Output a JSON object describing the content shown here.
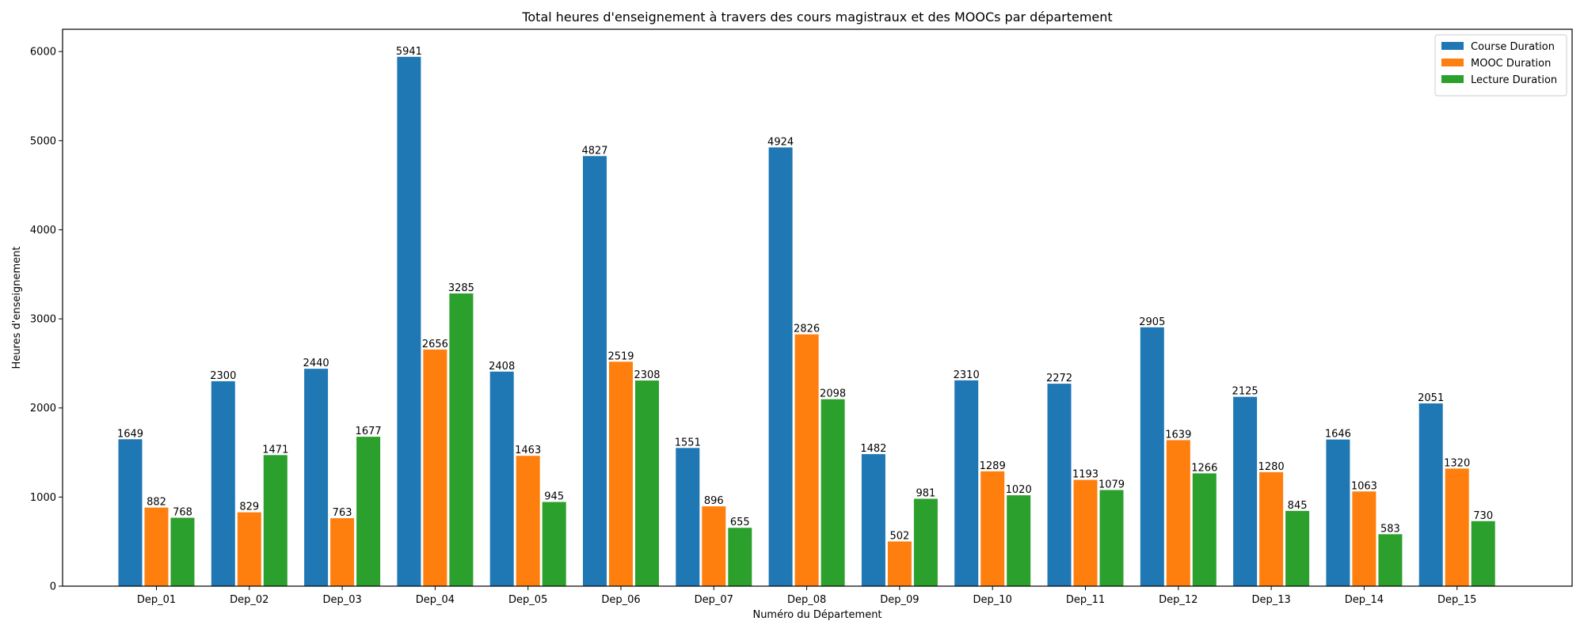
{
  "chart_data": {
    "type": "bar",
    "title": "Total heures d'enseignement à travers des cours magistraux et des MOOCs par département",
    "xlabel": "Numéro du Département",
    "ylabel": "Heures d'enseignement",
    "ylim": [
      0,
      6250
    ],
    "yticks": [
      0,
      1000,
      2000,
      3000,
      4000,
      5000,
      6000
    ],
    "grid": false,
    "legend_position": "top-right",
    "categories": [
      "Dep_01",
      "Dep_02",
      "Dep_03",
      "Dep_04",
      "Dep_05",
      "Dep_06",
      "Dep_07",
      "Dep_08",
      "Dep_09",
      "Dep_10",
      "Dep_11",
      "Dep_12",
      "Dep_13",
      "Dep_14",
      "Dep_15"
    ],
    "series": [
      {
        "name": "Course Duration",
        "color": "#1f77b4",
        "values": [
          1649,
          2300,
          2440,
          5941,
          2408,
          4827,
          1551,
          4924,
          1482,
          2310,
          2272,
          2905,
          2125,
          1646,
          2051
        ]
      },
      {
        "name": "MOOC Duration",
        "color": "#ff7f0e",
        "values": [
          882,
          829,
          763,
          2656,
          1463,
          2519,
          896,
          2826,
          502,
          1289,
          1193,
          1639,
          1280,
          1063,
          1320
        ]
      },
      {
        "name": "Lecture Duration",
        "color": "#2ca02c",
        "values": [
          768,
          1471,
          1677,
          3285,
          945,
          2308,
          655,
          2098,
          981,
          1020,
          1079,
          1266,
          845,
          583,
          730
        ]
      }
    ]
  }
}
